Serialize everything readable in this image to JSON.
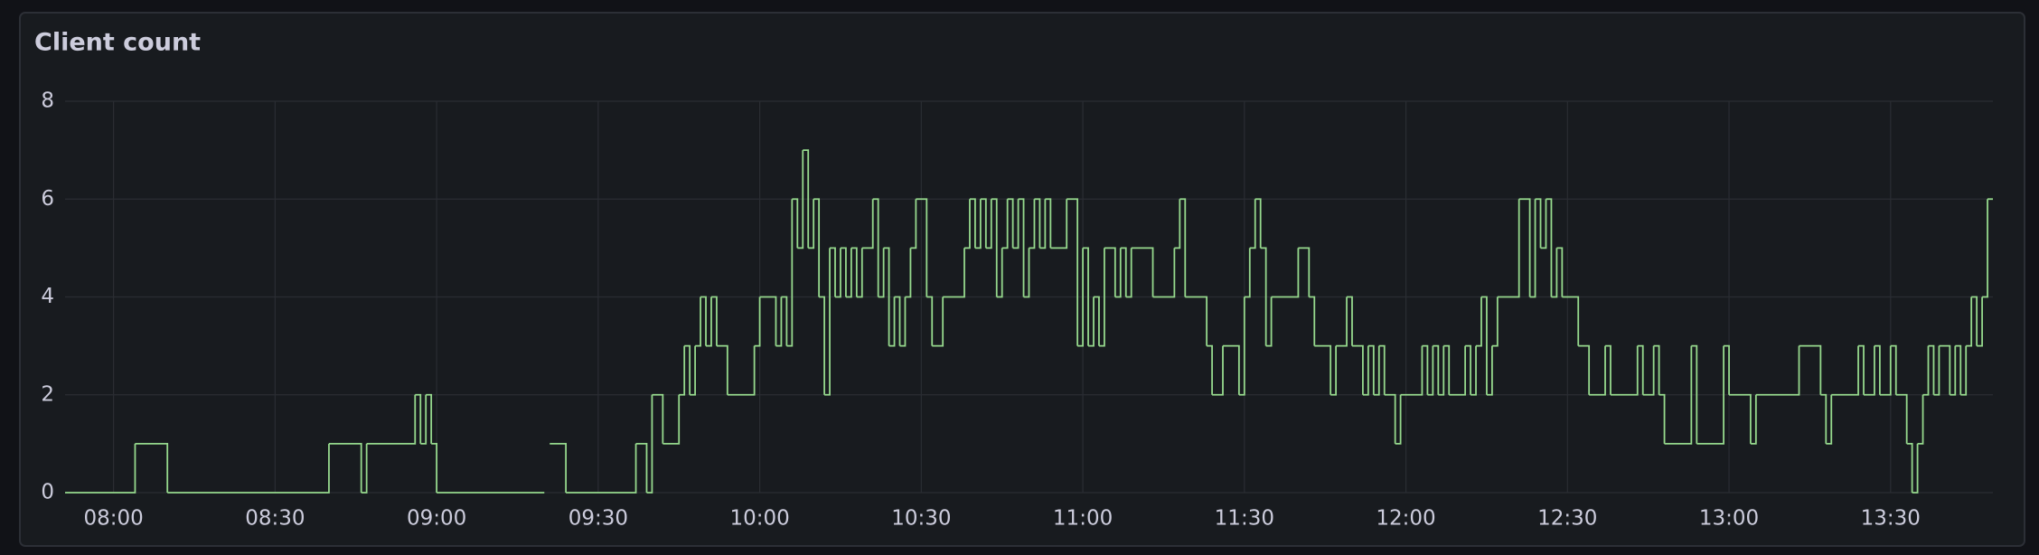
{
  "chart_data": {
    "type": "step-line",
    "title": "Client count",
    "x": [
      "07:51",
      "08:04",
      "08:10",
      "08:40",
      "08:46",
      "08:47",
      "08:56",
      "08:57",
      "08:58",
      "08:59",
      "09:00",
      "09:20",
      "09:21",
      "09:24",
      "09:37",
      "09:39",
      "09:40",
      "09:42",
      "09:45",
      "09:46",
      "09:47",
      "09:48",
      "09:49",
      "09:50",
      "09:51",
      "09:52",
      "09:54",
      "09:59",
      "10:00",
      "10:03",
      "10:04",
      "10:05",
      "10:06",
      "10:07",
      "10:08",
      "10:09",
      "10:10",
      "10:11",
      "10:12",
      "10:13",
      "10:14",
      "10:15",
      "10:16",
      "10:17",
      "10:18",
      "10:19",
      "10:21",
      "10:22",
      "10:23",
      "10:24",
      "10:25",
      "10:26",
      "10:27",
      "10:28",
      "10:29",
      "10:31",
      "10:32",
      "10:34",
      "10:38",
      "10:39",
      "10:40",
      "10:41",
      "10:42",
      "10:43",
      "10:44",
      "10:45",
      "10:46",
      "10:47",
      "10:48",
      "10:49",
      "10:50",
      "10:51",
      "10:52",
      "10:53",
      "10:54",
      "10:57",
      "10:59",
      "11:00",
      "11:01",
      "11:02",
      "11:03",
      "11:04",
      "11:06",
      "11:07",
      "11:08",
      "11:09",
      "11:13",
      "11:17",
      "11:18",
      "11:19",
      "11:23",
      "11:24",
      "11:26",
      "11:29",
      "11:30",
      "11:31",
      "11:32",
      "11:33",
      "11:34",
      "11:35",
      "11:40",
      "11:42",
      "11:43",
      "11:46",
      "11:47",
      "11:49",
      "11:50",
      "11:52",
      "11:53",
      "11:54",
      "11:55",
      "11:56",
      "11:58",
      "11:59",
      "12:03",
      "12:04",
      "12:05",
      "12:06",
      "12:07",
      "12:08",
      "12:11",
      "12:12",
      "12:13",
      "12:14",
      "12:15",
      "12:16",
      "12:17",
      "12:21",
      "12:23",
      "12:24",
      "12:25",
      "12:26",
      "12:27",
      "12:28",
      "12:29",
      "12:32",
      "12:34",
      "12:37",
      "12:38",
      "12:43",
      "12:44",
      "12:46",
      "12:47",
      "12:48",
      "12:53",
      "12:54",
      "12:59",
      "13:00",
      "13:04",
      "13:05",
      "13:13",
      "13:17",
      "13:18",
      "13:19",
      "13:24",
      "13:25",
      "13:27",
      "13:28",
      "13:30",
      "13:31",
      "13:33",
      "13:34",
      "13:35",
      "13:36",
      "13:37",
      "13:38",
      "13:39",
      "13:41",
      "13:42",
      "13:43",
      "13:44",
      "13:45",
      "13:46",
      "13:47",
      "13:48"
    ],
    "values": [
      0,
      1,
      0,
      1,
      0,
      1,
      2,
      1,
      2,
      1,
      0,
      null,
      1,
      0,
      1,
      0,
      2,
      1,
      2,
      3,
      2,
      3,
      4,
      3,
      4,
      3,
      2,
      3,
      4,
      3,
      4,
      3,
      6,
      5,
      7,
      5,
      6,
      4,
      2,
      5,
      4,
      5,
      4,
      5,
      4,
      5,
      6,
      4,
      5,
      3,
      4,
      3,
      4,
      5,
      6,
      4,
      3,
      4,
      5,
      6,
      5,
      6,
      5,
      6,
      4,
      5,
      6,
      5,
      6,
      4,
      5,
      6,
      5,
      6,
      5,
      6,
      3,
      5,
      3,
      4,
      3,
      5,
      4,
      5,
      4,
      5,
      4,
      5,
      6,
      4,
      3,
      2,
      3,
      2,
      4,
      5,
      6,
      5,
      3,
      4,
      5,
      4,
      3,
      2,
      3,
      4,
      3,
      2,
      3,
      2,
      3,
      2,
      1,
      2,
      3,
      2,
      3,
      2,
      3,
      2,
      3,
      2,
      3,
      4,
      2,
      3,
      4,
      6,
      4,
      6,
      5,
      6,
      4,
      5,
      4,
      3,
      2,
      3,
      2,
      3,
      2,
      3,
      2,
      1,
      3,
      1,
      3,
      2,
      1,
      2,
      3,
      2,
      1,
      2,
      3,
      2,
      3,
      2,
      3,
      2,
      1,
      0,
      1,
      2,
      3,
      2,
      3,
      2,
      3,
      2,
      3,
      4,
      3,
      4,
      6
    ],
    "color": "#96d98d",
    "xlim": [
      "07:51",
      "13:49"
    ],
    "xticks": [
      "08:00",
      "08:30",
      "09:00",
      "09:30",
      "10:00",
      "10:30",
      "11:00",
      "11:30",
      "12:00",
      "12:30",
      "13:00",
      "13:30"
    ],
    "ylim": [
      0,
      8
    ],
    "yticks": [
      0,
      2,
      4,
      6,
      8
    ],
    "grid": true
  }
}
